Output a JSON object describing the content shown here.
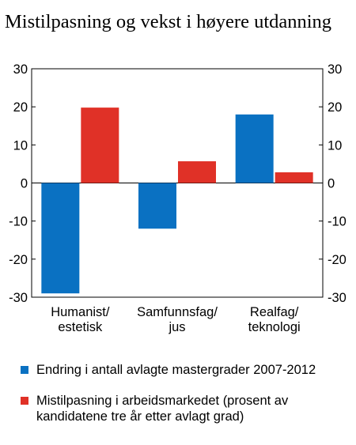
{
  "chart_data": {
    "type": "bar",
    "title": "Mistilpasning og vekst i høyere utdanning",
    "categories": [
      [
        "Humanist/",
        "estetisk"
      ],
      [
        "Samfunnsfag/",
        "jus"
      ],
      [
        "Realfag/",
        "teknologi"
      ]
    ],
    "series": [
      {
        "name": "Endring i antall avlagte mastergrader 2007-2012",
        "color": "#0a71c2",
        "values": [
          -29,
          -12,
          18
        ]
      },
      {
        "name": "Mistilpasning i arbeidsmarkedet (prosent av kandidatene tre år etter avlagt grad)",
        "color": "#e03127",
        "values": [
          19.8,
          5.7,
          2.8
        ]
      }
    ],
    "ylim": [
      -30,
      30
    ],
    "yticks": [
      30,
      20,
      10,
      0,
      -10,
      -20,
      -30
    ],
    "secondary_axis": true,
    "grid": false,
    "legend_position": "bottom"
  }
}
